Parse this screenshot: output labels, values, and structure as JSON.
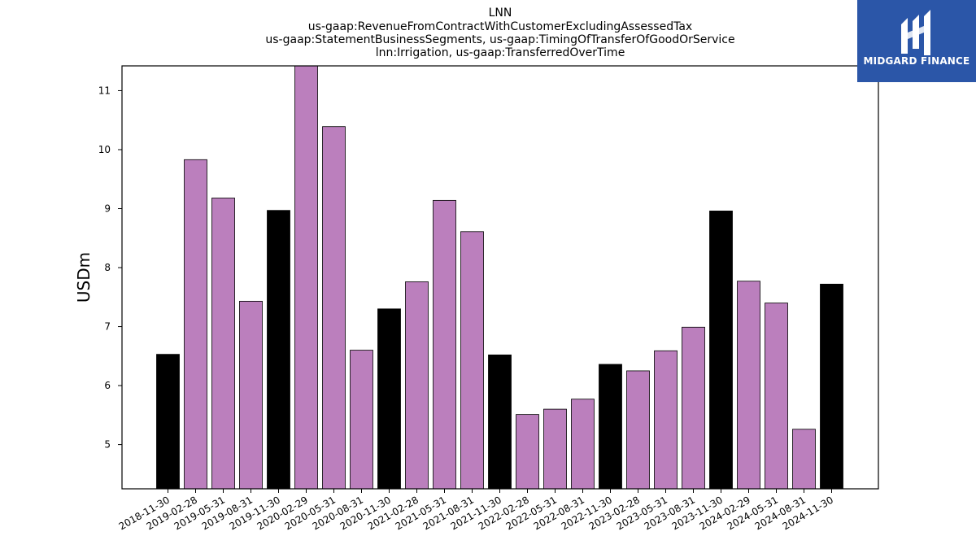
{
  "chart_data": {
    "type": "bar",
    "title_lines": [
      "LNN",
      "us-gaap:RevenueFromContractWithCustomerExcludingAssessedTax",
      "us-gaap:StatementBusinessSegments, us-gaap:TimingOfTransferOfGoodOrService",
      "lnn:Irrigation, us-gaap:TransferredOverTime"
    ],
    "ylabel": "USDm",
    "xlabel": "",
    "ylim": [
      4.25,
      11.42
    ],
    "yticks": [
      5,
      6,
      7,
      8,
      9,
      10,
      11
    ],
    "categories": [
      "2018-11-30",
      "2019-02-28",
      "2019-05-31",
      "2019-08-31",
      "2019-11-30",
      "2020-02-29",
      "2020-05-31",
      "2020-08-31",
      "2020-11-30",
      "2021-02-28",
      "2021-05-31",
      "2021-08-31",
      "2021-11-30",
      "2022-02-28",
      "2022-05-31",
      "2022-08-31",
      "2022-11-30",
      "2023-02-28",
      "2023-05-31",
      "2023-08-31",
      "2023-11-30",
      "2024-02-29",
      "2024-05-31",
      "2024-08-31",
      "2024-11-30"
    ],
    "values": [
      6.53,
      9.83,
      9.18,
      7.43,
      8.97,
      11.45,
      10.39,
      6.6,
      7.3,
      7.76,
      9.14,
      8.61,
      6.52,
      5.51,
      5.6,
      5.77,
      6.36,
      6.25,
      6.59,
      6.99,
      8.96,
      7.77,
      7.4,
      5.26,
      7.72
    ],
    "colors": [
      "#000000",
      "#bb7fbd",
      "#bb7fbd",
      "#bb7fbd",
      "#000000",
      "#bb7fbd",
      "#bb7fbd",
      "#bb7fbd",
      "#000000",
      "#bb7fbd",
      "#bb7fbd",
      "#bb7fbd",
      "#000000",
      "#bb7fbd",
      "#bb7fbd",
      "#bb7fbd",
      "#000000",
      "#bb7fbd",
      "#bb7fbd",
      "#bb7fbd",
      "#000000",
      "#bb7fbd",
      "#bb7fbd",
      "#bb7fbd",
      "#000000"
    ],
    "grid": false,
    "legend": "none"
  },
  "logo": {
    "text": "MIDGARD FINANCE",
    "icon": "midgard-logo-icon",
    "color": "#2b56a8"
  }
}
